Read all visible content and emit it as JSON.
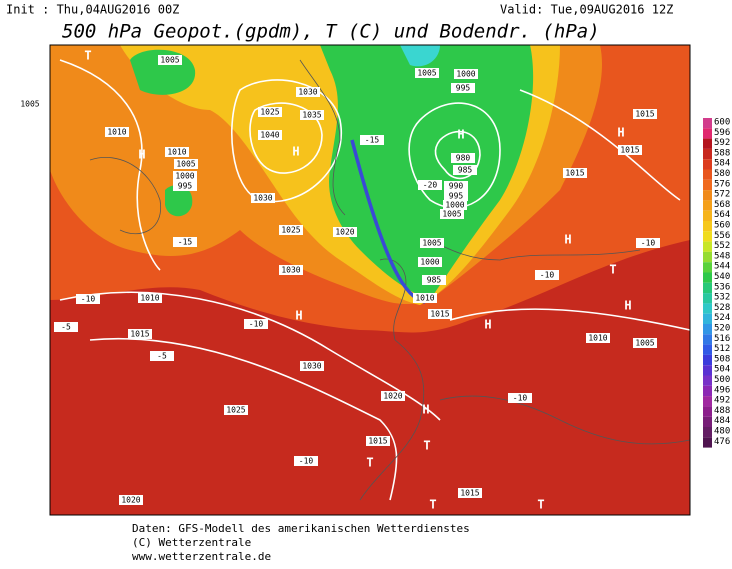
{
  "header": {
    "init": "Init : Thu,04AUG2016 00Z",
    "valid": "Valid: Tue,09AUG2016 12Z",
    "title": "500 hPa Geopot.(gpdm), T (C) und Bodendr. (hPa)"
  },
  "footer": {
    "lines": [
      "Daten: GFS-Modell des amerikanischen Wetterdienstes",
      "(C) Wetterzentrale",
      "www.wetterzentrale.de"
    ]
  },
  "colorbar": {
    "labels": [
      600,
      596,
      592,
      588,
      584,
      580,
      576,
      572,
      568,
      564,
      560,
      556,
      552,
      548,
      544,
      540,
      536,
      532,
      528,
      524,
      520,
      516,
      512,
      508,
      504,
      500,
      496,
      492,
      488,
      484,
      480,
      476
    ]
  },
  "map": {
    "labels": [
      "1005",
      "1010",
      "1005",
      "H",
      "1010",
      "1005",
      "1000",
      "995",
      "1025",
      "1030",
      "1035",
      "1040",
      "H",
      "1030",
      "1025",
      "1020",
      "1030",
      "1010",
      "H",
      "1015",
      "1030",
      "1025",
      "1020",
      "1015",
      "1020",
      "T",
      "T",
      "T",
      "H",
      "H",
      "1005",
      "1000",
      "995",
      "H",
      "980",
      "985",
      "990",
      "995",
      "1000",
      "1005",
      "1005",
      "1000",
      "985",
      "1010",
      "1015",
      "1015",
      "1015",
      "1015",
      "H",
      "H",
      "T",
      "H",
      "1010",
      "1005",
      "T",
      "T",
      "1015",
      "-15",
      "-15",
      "-20",
      "-10",
      "-5",
      "-10",
      "-10",
      "-10",
      "-5",
      "-10",
      "-10"
    ]
  }
}
